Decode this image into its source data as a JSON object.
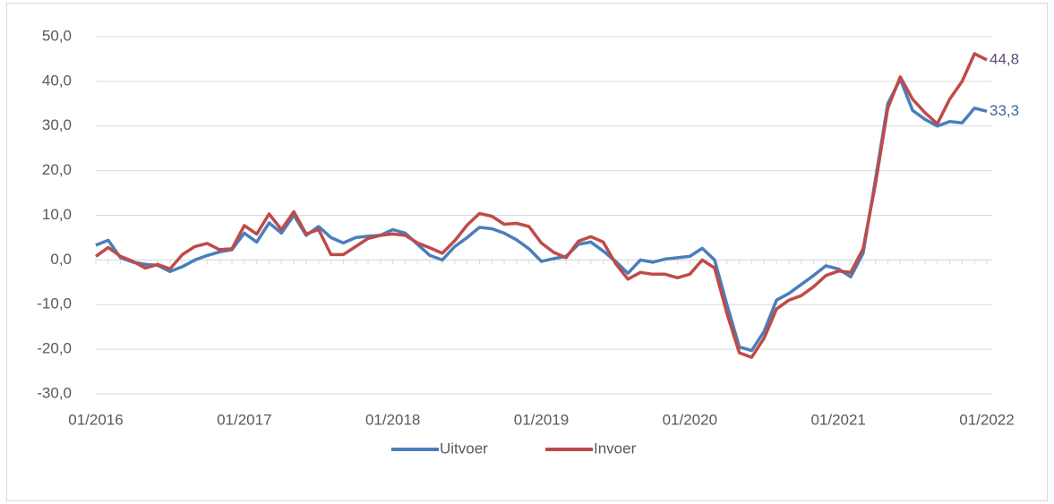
{
  "chart_data": {
    "type": "line",
    "categories": [
      "01/2016",
      null,
      null,
      null,
      null,
      null,
      null,
      null,
      null,
      null,
      null,
      null,
      "01/2017",
      null,
      null,
      null,
      null,
      null,
      null,
      null,
      null,
      null,
      null,
      null,
      "01/2018",
      null,
      null,
      null,
      null,
      null,
      null,
      null,
      null,
      null,
      null,
      null,
      "01/2019",
      null,
      null,
      null,
      null,
      null,
      null,
      null,
      null,
      null,
      null,
      null,
      "01/2020",
      null,
      null,
      null,
      null,
      null,
      null,
      null,
      null,
      null,
      null,
      null,
      "01/2021",
      null,
      null,
      null,
      null,
      null,
      null,
      null,
      null,
      null,
      null,
      null,
      "01/2022"
    ],
    "series": [
      {
        "name": "Uitvoer",
        "color": "#4a7ebb",
        "label_color": "#3f6797",
        "end_label": "33,3",
        "values": [
          3.3,
          4.4,
          0.5,
          -0.5,
          -1.0,
          -1.2,
          -2.6,
          -1.5,
          0.0,
          1.0,
          1.8,
          2.3,
          6.0,
          4.0,
          8.3,
          6.0,
          10.0,
          5.5,
          7.5,
          5.0,
          3.8,
          5.0,
          5.3,
          5.5,
          6.8,
          6.0,
          3.5,
          1.0,
          0.0,
          3.0,
          5.0,
          7.3,
          7.0,
          6.0,
          4.5,
          2.5,
          -0.3,
          0.3,
          0.8,
          3.5,
          4.0,
          2.0,
          -0.3,
          -3.0,
          0.0,
          -0.5,
          0.2,
          0.5,
          0.8,
          2.6,
          0.0,
          -10.0,
          -19.5,
          -20.3,
          -16.0,
          -9.0,
          -7.5,
          -5.5,
          -3.5,
          -1.3,
          -2.0,
          -3.8,
          1.5,
          18.0,
          35.0,
          40.5,
          33.5,
          31.5,
          30.0,
          31.0,
          30.7,
          34.0,
          33.3
        ]
      },
      {
        "name": "Invoer",
        "color": "#be4b48",
        "label_color": "#604a7b",
        "end_label": "44,8",
        "values": [
          0.8,
          2.8,
          0.8,
          -0.3,
          -1.8,
          -1.0,
          -2.0,
          1.2,
          3.0,
          3.7,
          2.3,
          2.5,
          7.7,
          5.8,
          10.3,
          6.8,
          10.8,
          5.8,
          6.8,
          1.2,
          1.2,
          3.0,
          4.8,
          5.5,
          5.8,
          5.5,
          3.8,
          2.7,
          1.5,
          4.3,
          7.8,
          10.4,
          9.8,
          8.0,
          8.2,
          7.5,
          3.8,
          1.7,
          0.5,
          4.2,
          5.2,
          4.0,
          -0.8,
          -4.3,
          -2.8,
          -3.2,
          -3.2,
          -4.0,
          -3.2,
          0.0,
          -1.8,
          -12.0,
          -20.8,
          -21.8,
          -17.5,
          -11.0,
          -9.0,
          -8.0,
          -6.0,
          -3.5,
          -2.5,
          -2.8,
          2.5,
          17.0,
          34.0,
          41.0,
          36.0,
          33.0,
          30.5,
          36.0,
          40.0,
          46.2,
          44.8
        ]
      }
    ],
    "ylim": [
      -30,
      50
    ],
    "yticks": [
      {
        "value": -30,
        "label": "-30,0"
      },
      {
        "value": -20,
        "label": "-20,0"
      },
      {
        "value": -10,
        "label": "-10,0"
      },
      {
        "value": 0,
        "label": "0,0"
      },
      {
        "value": 10,
        "label": "10,0"
      },
      {
        "value": 20,
        "label": "20,0"
      },
      {
        "value": 30,
        "label": "30,0"
      },
      {
        "value": 40,
        "label": "40,0"
      },
      {
        "value": 50,
        "label": "50,0"
      }
    ],
    "grid": true,
    "legend": "bottom"
  }
}
